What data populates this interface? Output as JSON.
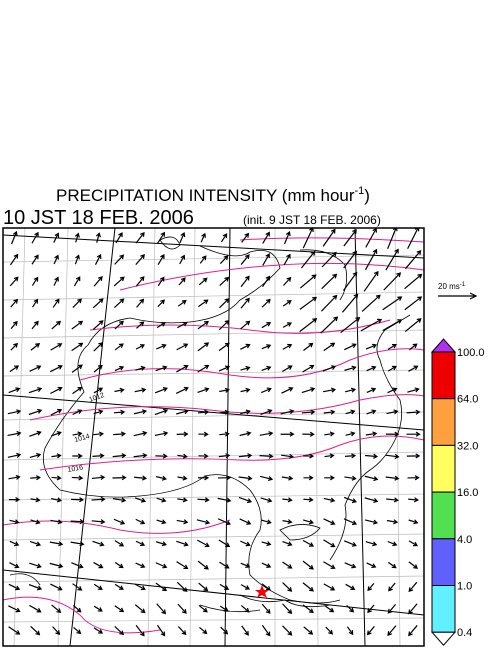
{
  "header": {
    "title": "PRECIPITATION INTENSITY (mm hour",
    "title_sup": "-1",
    "title_end": ")",
    "time": "10 JST 18 FEB. 2006",
    "init": "(init. 9 JST 18 FEB. 2006)"
  },
  "wind_legend": {
    "label": "20 ms",
    "sup": "-1"
  },
  "colorbar": {
    "top_color": "#b030f0",
    "bottom_color": "#ffffff",
    "segments": [
      "#ee0000",
      "#ffa040",
      "#ffff60",
      "#50e050",
      "#6060ff",
      "#60f0ff"
    ],
    "labels": [
      "100.0",
      "64.0",
      "32.0",
      "16.0",
      "4.0",
      "1.0",
      "0.4"
    ]
  },
  "isobars": [
    "1012",
    "1014",
    "1016"
  ]
}
